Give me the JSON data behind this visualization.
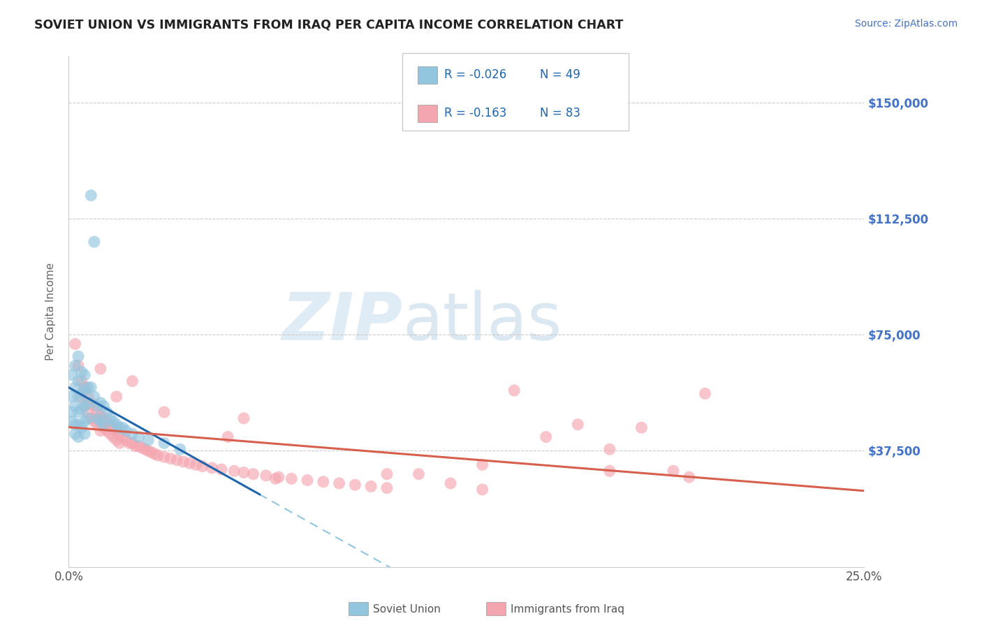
{
  "title": "SOVIET UNION VS IMMIGRANTS FROM IRAQ PER CAPITA INCOME CORRELATION CHART",
  "source": "Source: ZipAtlas.com",
  "ylabel": "Per Capita Income",
  "watermark_zip": "ZIP",
  "watermark_atlas": "atlas",
  "y_ticks": [
    0,
    37500,
    75000,
    112500,
    150000
  ],
  "y_tick_labels": [
    "",
    "$37,500",
    "$75,000",
    "$112,500",
    "$150,000"
  ],
  "x_min": 0.0,
  "x_max": 0.25,
  "y_min": 0,
  "y_max": 165000,
  "legend_blue_r": "-0.026",
  "legend_blue_n": "49",
  "legend_pink_r": "-0.163",
  "legend_pink_n": "83",
  "blue_color": "#92c5de",
  "pink_color": "#f4a6b0",
  "blue_line_color": "#2166ac",
  "pink_line_color": "#d6604d",
  "dashed_line_color": "#92c5de",
  "background_color": "#ffffff",
  "blue_scatter_x": [
    0.001,
    0.001,
    0.001,
    0.001,
    0.002,
    0.002,
    0.002,
    0.002,
    0.002,
    0.003,
    0.003,
    0.003,
    0.003,
    0.003,
    0.003,
    0.004,
    0.004,
    0.004,
    0.004,
    0.005,
    0.005,
    0.005,
    0.005,
    0.005,
    0.006,
    0.006,
    0.006,
    0.007,
    0.007,
    0.008,
    0.008,
    0.009,
    0.009,
    0.01,
    0.01,
    0.011,
    0.011,
    0.012,
    0.013,
    0.014,
    0.015,
    0.016,
    0.017,
    0.018,
    0.02,
    0.022,
    0.025,
    0.03,
    0.035
  ],
  "blue_scatter_y": [
    62000,
    55000,
    50000,
    47000,
    65000,
    58000,
    52000,
    46000,
    43000,
    68000,
    60000,
    55000,
    50000,
    46000,
    42000,
    63000,
    56000,
    51000,
    45000,
    62000,
    57000,
    52000,
    47000,
    43000,
    58000,
    53000,
    48000,
    120000,
    58000,
    55000,
    105000,
    52000,
    48000,
    53000,
    47000,
    52000,
    46000,
    50000,
    48000,
    47000,
    46000,
    45000,
    45000,
    44000,
    43000,
    42000,
    41000,
    40000,
    38000
  ],
  "pink_scatter_x": [
    0.002,
    0.003,
    0.004,
    0.004,
    0.005,
    0.005,
    0.006,
    0.006,
    0.007,
    0.007,
    0.008,
    0.008,
    0.009,
    0.009,
    0.01,
    0.01,
    0.01,
    0.011,
    0.011,
    0.012,
    0.012,
    0.013,
    0.013,
    0.014,
    0.014,
    0.015,
    0.015,
    0.016,
    0.016,
    0.017,
    0.018,
    0.019,
    0.02,
    0.021,
    0.022,
    0.023,
    0.024,
    0.025,
    0.026,
    0.027,
    0.028,
    0.03,
    0.032,
    0.034,
    0.036,
    0.038,
    0.04,
    0.042,
    0.045,
    0.048,
    0.052,
    0.055,
    0.058,
    0.062,
    0.066,
    0.07,
    0.075,
    0.08,
    0.085,
    0.09,
    0.095,
    0.1,
    0.11,
    0.12,
    0.13,
    0.14,
    0.15,
    0.16,
    0.17,
    0.18,
    0.19,
    0.2,
    0.065,
    0.055,
    0.13,
    0.17,
    0.195,
    0.01,
    0.015,
    0.02,
    0.03,
    0.05,
    0.1
  ],
  "pink_scatter_y": [
    72000,
    65000,
    60000,
    55000,
    58000,
    52000,
    55000,
    50000,
    53000,
    48000,
    52000,
    47000,
    50000,
    46000,
    49000,
    47000,
    44000,
    48000,
    45000,
    47000,
    44000,
    46000,
    43000,
    45000,
    42000,
    44000,
    41000,
    43000,
    40000,
    42000,
    41000,
    40000,
    40000,
    39000,
    39000,
    38500,
    38000,
    37500,
    37000,
    36500,
    36000,
    35500,
    35000,
    34500,
    34000,
    33500,
    33000,
    32500,
    32000,
    31500,
    31000,
    30500,
    30000,
    29500,
    29000,
    28500,
    28000,
    27500,
    27000,
    26500,
    26000,
    25500,
    30000,
    27000,
    33000,
    57000,
    42000,
    46000,
    38000,
    45000,
    31000,
    56000,
    28500,
    48000,
    25000,
    31000,
    29000,
    64000,
    55000,
    60000,
    50000,
    42000,
    30000
  ]
}
